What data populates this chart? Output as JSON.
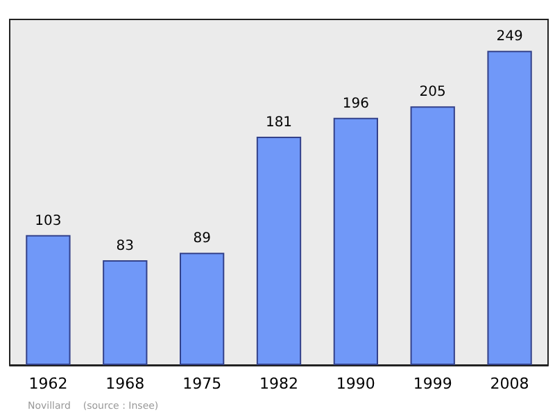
{
  "chart_data": {
    "type": "bar",
    "categories": [
      "1962",
      "1968",
      "1975",
      "1982",
      "1990",
      "1999",
      "2008"
    ],
    "values": [
      103,
      83,
      89,
      181,
      196,
      205,
      249
    ],
    "color": "#7098f8",
    "data_labels": true,
    "annotations": [
      "Novillard    (source : Insee)"
    ]
  }
}
